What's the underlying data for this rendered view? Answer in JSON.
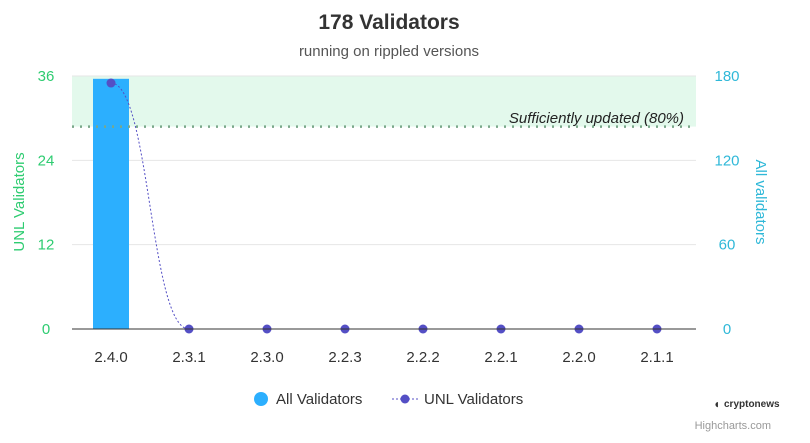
{
  "chart_data": {
    "type": "bar",
    "title": "178 Validators",
    "subtitle": "running on rippled versions",
    "categories": [
      "2.4.0",
      "2.3.1",
      "2.3.0",
      "2.2.3",
      "2.2.2",
      "2.2.1",
      "2.2.0",
      "2.1.1"
    ],
    "series": [
      {
        "name": "All Validators",
        "type": "bar",
        "axis": "right",
        "color": "#2caffe",
        "values": [
          178,
          0,
          0,
          0,
          0,
          0,
          0,
          0
        ]
      },
      {
        "name": "UNL Validators",
        "type": "line",
        "axis": "left",
        "color": "#544fc5",
        "values": [
          35,
          0,
          0,
          0,
          0,
          0,
          0,
          0
        ]
      }
    ],
    "left_axis": {
      "label": "UNL Validators",
      "ticks": [
        0,
        12,
        24,
        36
      ],
      "range": [
        0,
        36
      ],
      "color": "#2ecc71"
    },
    "right_axis": {
      "label": "All validators",
      "ticks": [
        0,
        60,
        120,
        180
      ],
      "range": [
        0,
        180
      ],
      "color": "#2fb8d8"
    },
    "threshold": {
      "label": "Sufficiently updated (80%)",
      "value": 28.8,
      "band_from": 28.8,
      "band_to": 36,
      "band_color": "#e3f9ec",
      "line_color": "#7aa88a"
    },
    "grid": true,
    "legend_position": "bottom-center"
  },
  "credits": {
    "logo_text": "cryptonews",
    "text": "Highcharts.com"
  }
}
